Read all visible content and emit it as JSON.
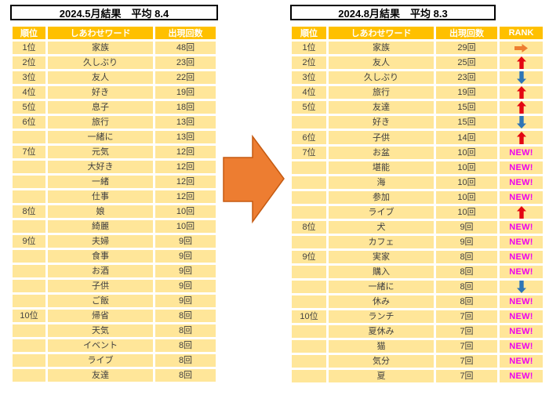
{
  "colors": {
    "header_bg": "#FFC000",
    "row_bg": "#FFE699",
    "header_text": "#FFFFFF",
    "body_text": "#404040",
    "title_text": "#000000",
    "new_label": "#EE00EE",
    "up_arrow": "#E30613",
    "down_arrow": "#2E75B6",
    "same_arrow": "#ED7D31",
    "big_arrow": "#ED7D31",
    "big_arrow_edge": "#C55A11"
  },
  "labels": {
    "new": "NEW!"
  },
  "icons": {
    "up": "rank-up-icon",
    "down": "rank-down-icon",
    "same": "rank-same-icon",
    "transition": "big-right-arrow-icon"
  },
  "chart_data": [
    {
      "type": "table",
      "title": "2024.5月結果　平均 8.4",
      "average": 8.4,
      "columns": [
        "順位",
        "しあわせワード",
        "出現回数"
      ],
      "unit": "回",
      "rows": [
        {
          "rank": "1位",
          "word": "家族",
          "count": 48
        },
        {
          "rank": "2位",
          "word": "久しぶり",
          "count": 23
        },
        {
          "rank": "3位",
          "word": "友人",
          "count": 22
        },
        {
          "rank": "4位",
          "word": "好き",
          "count": 19
        },
        {
          "rank": "5位",
          "word": "息子",
          "count": 18
        },
        {
          "rank": "6位",
          "word": "旅行",
          "count": 13
        },
        {
          "rank": "",
          "word": "一緒に",
          "count": 13
        },
        {
          "rank": "7位",
          "word": "元気",
          "count": 12
        },
        {
          "rank": "",
          "word": "大好き",
          "count": 12
        },
        {
          "rank": "",
          "word": "一緒",
          "count": 12
        },
        {
          "rank": "",
          "word": "仕事",
          "count": 12
        },
        {
          "rank": "8位",
          "word": "娘",
          "count": 10
        },
        {
          "rank": "",
          "word": "綺麗",
          "count": 10
        },
        {
          "rank": "9位",
          "word": "夫婦",
          "count": 9
        },
        {
          "rank": "",
          "word": "食事",
          "count": 9
        },
        {
          "rank": "",
          "word": "お酒",
          "count": 9
        },
        {
          "rank": "",
          "word": "子供",
          "count": 9
        },
        {
          "rank": "",
          "word": "ご飯",
          "count": 9
        },
        {
          "rank": "10位",
          "word": "帰省",
          "count": 8
        },
        {
          "rank": "",
          "word": "天気",
          "count": 8
        },
        {
          "rank": "",
          "word": "イベント",
          "count": 8
        },
        {
          "rank": "",
          "word": "ライブ",
          "count": 8
        },
        {
          "rank": "",
          "word": "友達",
          "count": 8
        }
      ]
    },
    {
      "type": "table",
      "title": "2024.8月結果　平均 8.3",
      "average": 8.3,
      "columns": [
        "順位",
        "しあわせワード",
        "出現回数",
        "RANK"
      ],
      "unit": "回",
      "rows": [
        {
          "rank": "1位",
          "word": "家族",
          "count": 29,
          "trend": "same"
        },
        {
          "rank": "2位",
          "word": "友人",
          "count": 25,
          "trend": "up"
        },
        {
          "rank": "3位",
          "word": "久しぶり",
          "count": 23,
          "trend": "down"
        },
        {
          "rank": "4位",
          "word": "旅行",
          "count": 19,
          "trend": "up"
        },
        {
          "rank": "5位",
          "word": "友達",
          "count": 15,
          "trend": "up"
        },
        {
          "rank": "",
          "word": "好き",
          "count": 15,
          "trend": "down"
        },
        {
          "rank": "6位",
          "word": "子供",
          "count": 14,
          "trend": "up"
        },
        {
          "rank": "7位",
          "word": "お盆",
          "count": 10,
          "trend": "new"
        },
        {
          "rank": "",
          "word": "堪能",
          "count": 10,
          "trend": "new"
        },
        {
          "rank": "",
          "word": "海",
          "count": 10,
          "trend": "new"
        },
        {
          "rank": "",
          "word": "参加",
          "count": 10,
          "trend": "new"
        },
        {
          "rank": "",
          "word": "ライブ",
          "count": 10,
          "trend": "up"
        },
        {
          "rank": "8位",
          "word": "犬",
          "count": 9,
          "trend": "new"
        },
        {
          "rank": "",
          "word": "カフェ",
          "count": 9,
          "trend": "new"
        },
        {
          "rank": "9位",
          "word": "実家",
          "count": 8,
          "trend": "new"
        },
        {
          "rank": "",
          "word": "購入",
          "count": 8,
          "trend": "new"
        },
        {
          "rank": "",
          "word": "一緒に",
          "count": 8,
          "trend": "down"
        },
        {
          "rank": "",
          "word": "休み",
          "count": 8,
          "trend": "new"
        },
        {
          "rank": "10位",
          "word": "ランチ",
          "count": 7,
          "trend": "new"
        },
        {
          "rank": "",
          "word": "夏休み",
          "count": 7,
          "trend": "new"
        },
        {
          "rank": "",
          "word": "猫",
          "count": 7,
          "trend": "new"
        },
        {
          "rank": "",
          "word": "気分",
          "count": 7,
          "trend": "new"
        },
        {
          "rank": "",
          "word": "夏",
          "count": 7,
          "trend": "new"
        }
      ]
    }
  ]
}
